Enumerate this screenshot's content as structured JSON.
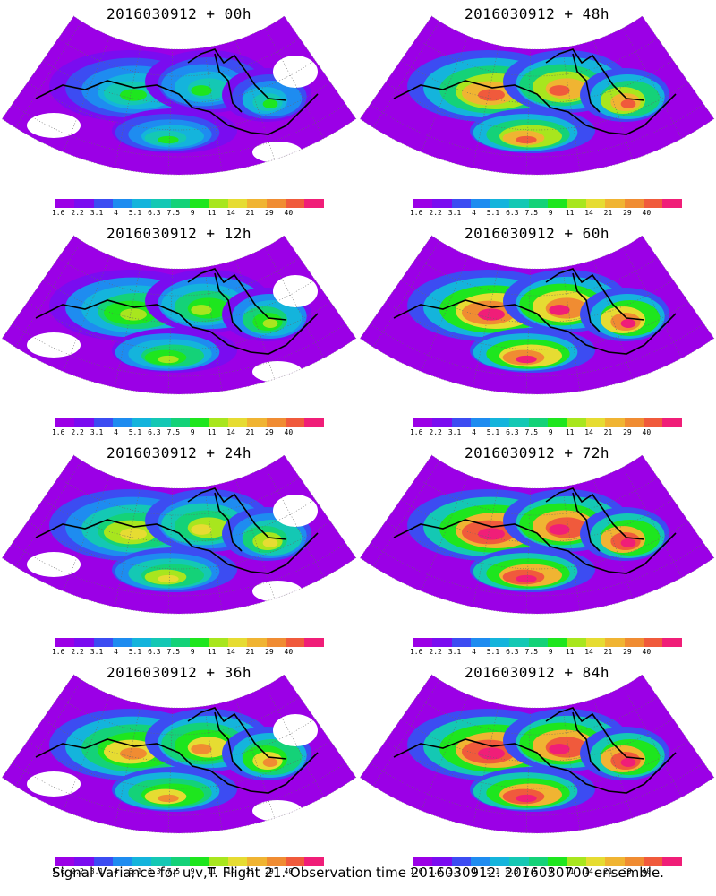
{
  "panels": [
    {
      "title": "2016030912 + 00h"
    },
    {
      "title": "2016030912 + 48h"
    },
    {
      "title": "2016030912 + 12h"
    },
    {
      "title": "2016030912 + 60h"
    },
    {
      "title": "2016030912 + 24h"
    },
    {
      "title": "2016030912 + 72h"
    },
    {
      "title": "2016030912 + 36h"
    },
    {
      "title": "2016030912 + 84h"
    }
  ],
  "colorbar": {
    "labels": [
      "1.6",
      "2.2",
      "3.1",
      "4",
      "5.1",
      "6.3",
      "7.5",
      "9",
      "11",
      "14",
      "21",
      "29",
      "40"
    ],
    "colors": [
      "#9b00e6",
      "#7a0cf0",
      "#3c4cf2",
      "#1e8cf0",
      "#14b4dc",
      "#14c8b4",
      "#14d278",
      "#1ee61e",
      "#a8e61e",
      "#e6dc32",
      "#f0b432",
      "#f08c32",
      "#f05a3c",
      "#f01e78"
    ]
  },
  "caption": "Signal Variance for u,v,T. Flight 21. Observation time 2016030912. 2016030700 ensemble."
}
